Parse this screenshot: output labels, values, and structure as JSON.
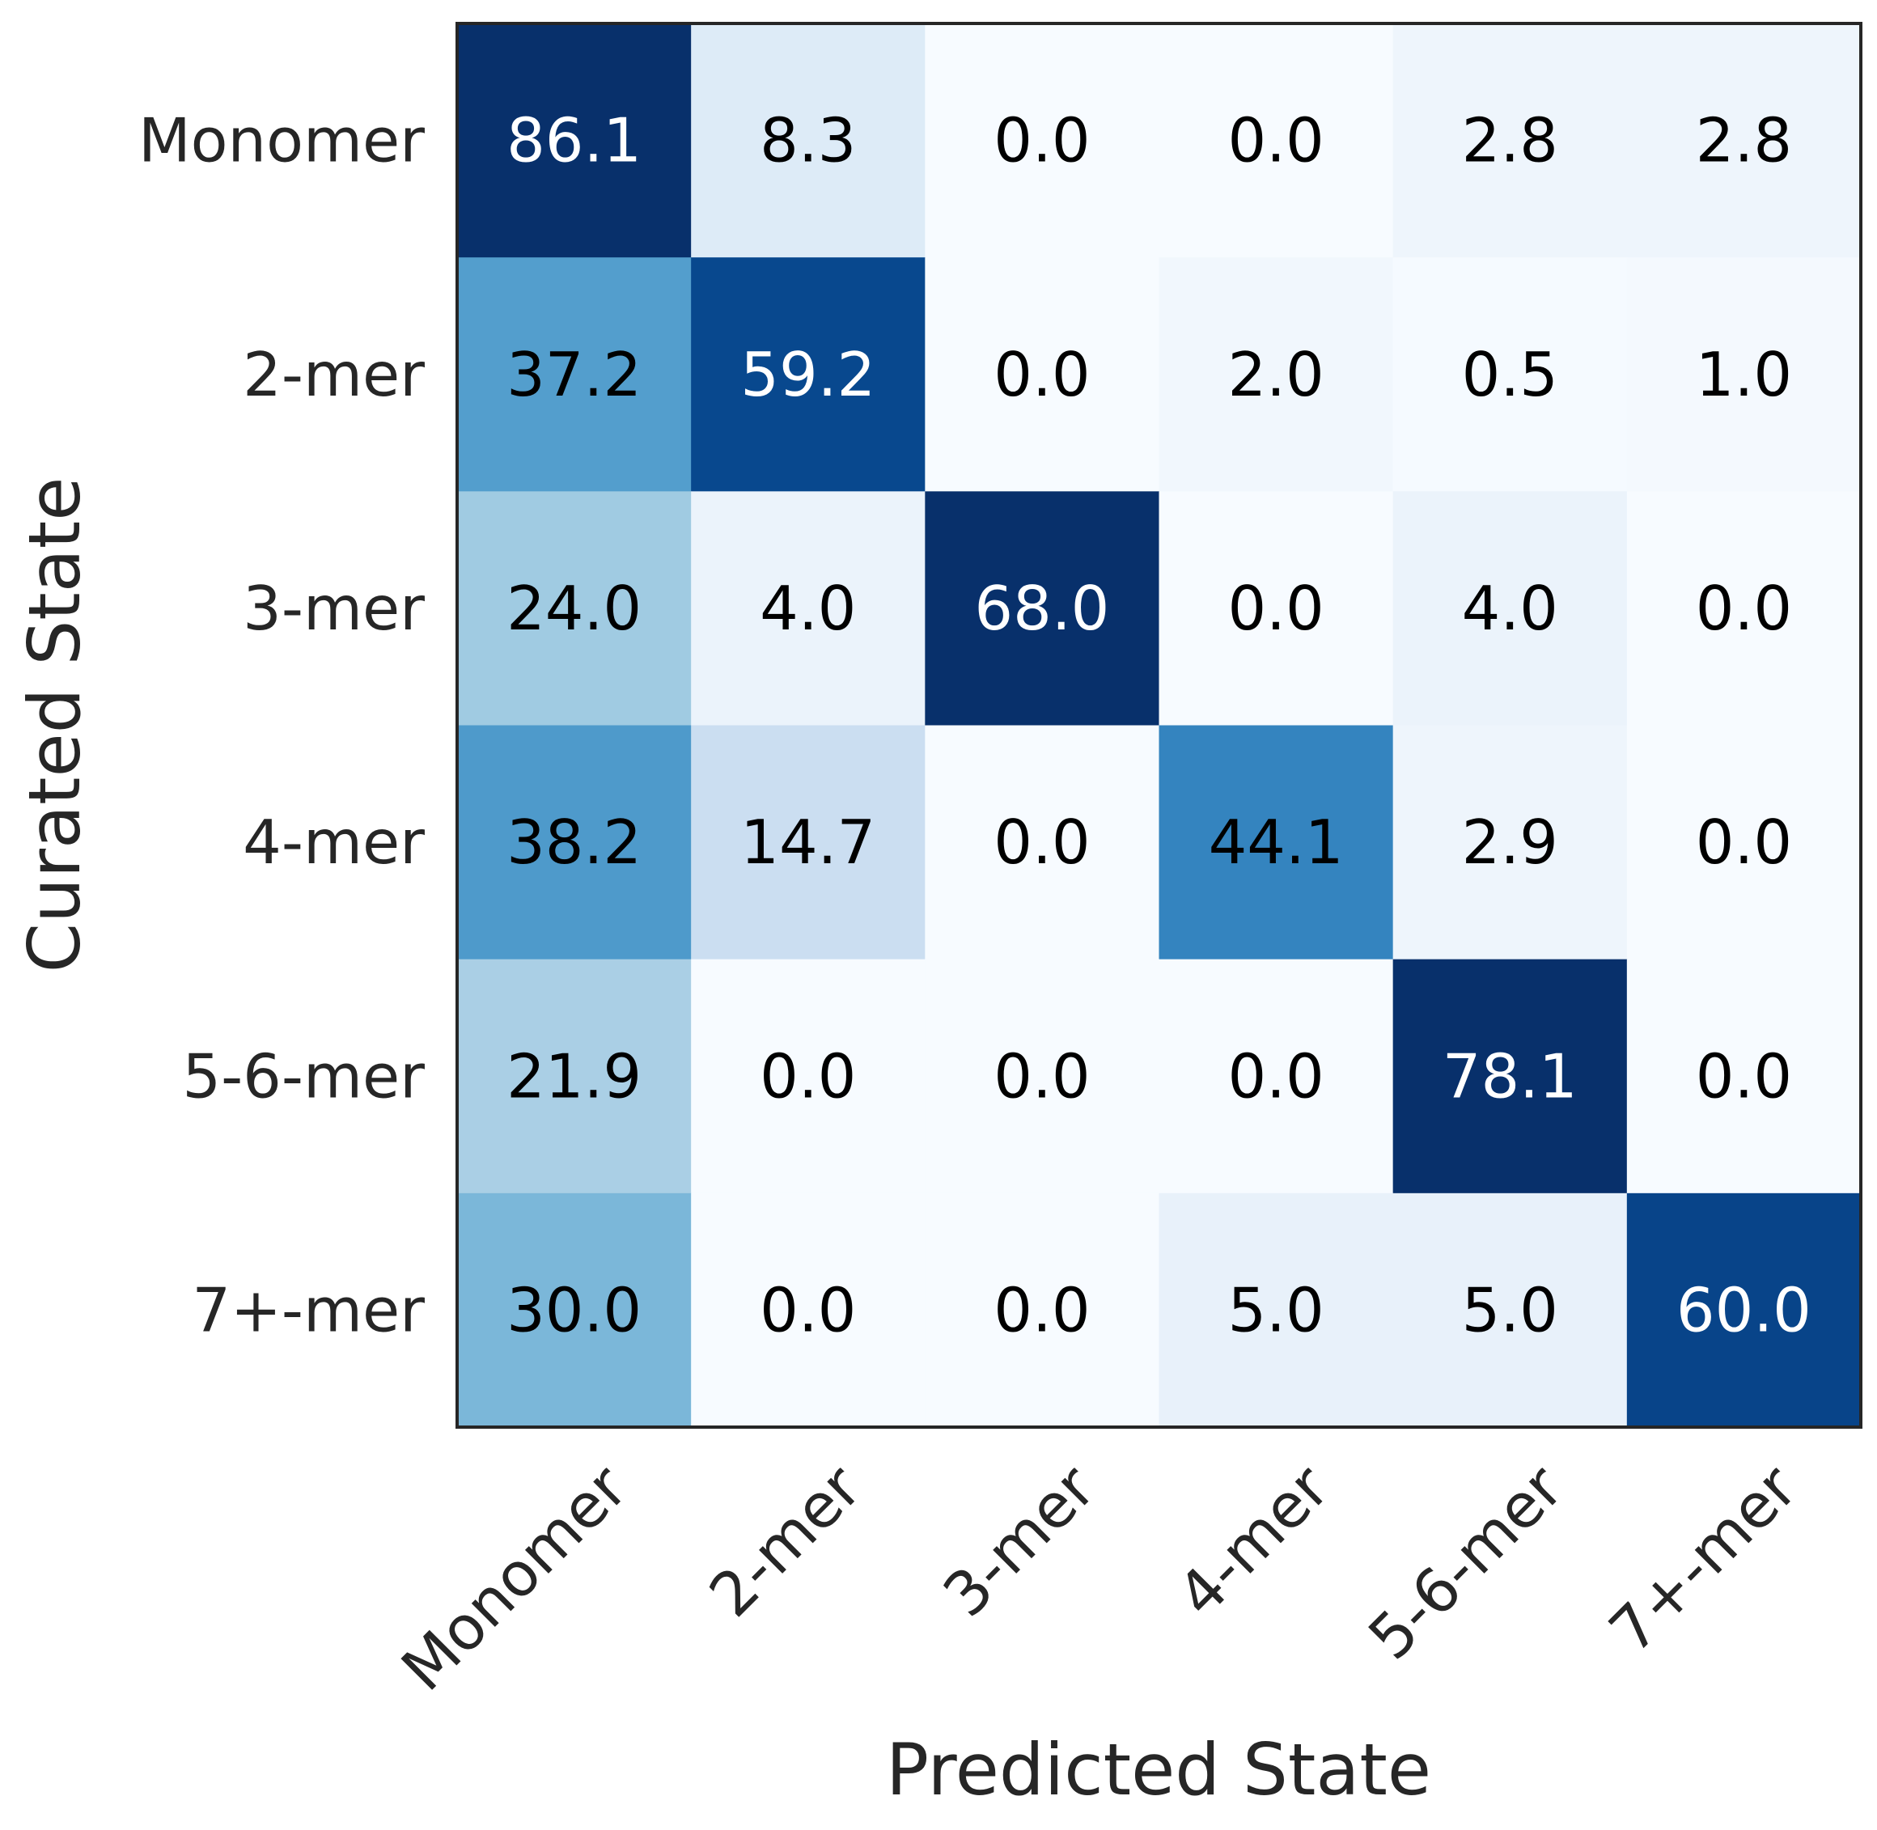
{
  "chart_data": {
    "type": "heatmap",
    "xlabel": "Predicted State",
    "ylabel": "Curated State",
    "x_categories": [
      "Monomer",
      "2-mer",
      "3-mer",
      "4-mer",
      "5-6-mer",
      "7+-mer"
    ],
    "y_categories": [
      "Monomer",
      "2-mer",
      "3-mer",
      "4-mer",
      "5-6-mer",
      "7+-mer"
    ],
    "values": [
      [
        86.1,
        8.3,
        0.0,
        0.0,
        2.8,
        2.8
      ],
      [
        37.2,
        59.2,
        0.0,
        2.0,
        0.5,
        1.0
      ],
      [
        24.0,
        4.0,
        68.0,
        0.0,
        4.0,
        0.0
      ],
      [
        38.2,
        14.7,
        0.0,
        44.1,
        2.9,
        0.0
      ],
      [
        21.9,
        0.0,
        0.0,
        0.0,
        78.1,
        0.0
      ],
      [
        30.0,
        0.0,
        0.0,
        5.0,
        5.0,
        60.0
      ]
    ],
    "value_format": "1 decimal",
    "colormap": "Blues",
    "grid": false,
    "legend": "none"
  }
}
